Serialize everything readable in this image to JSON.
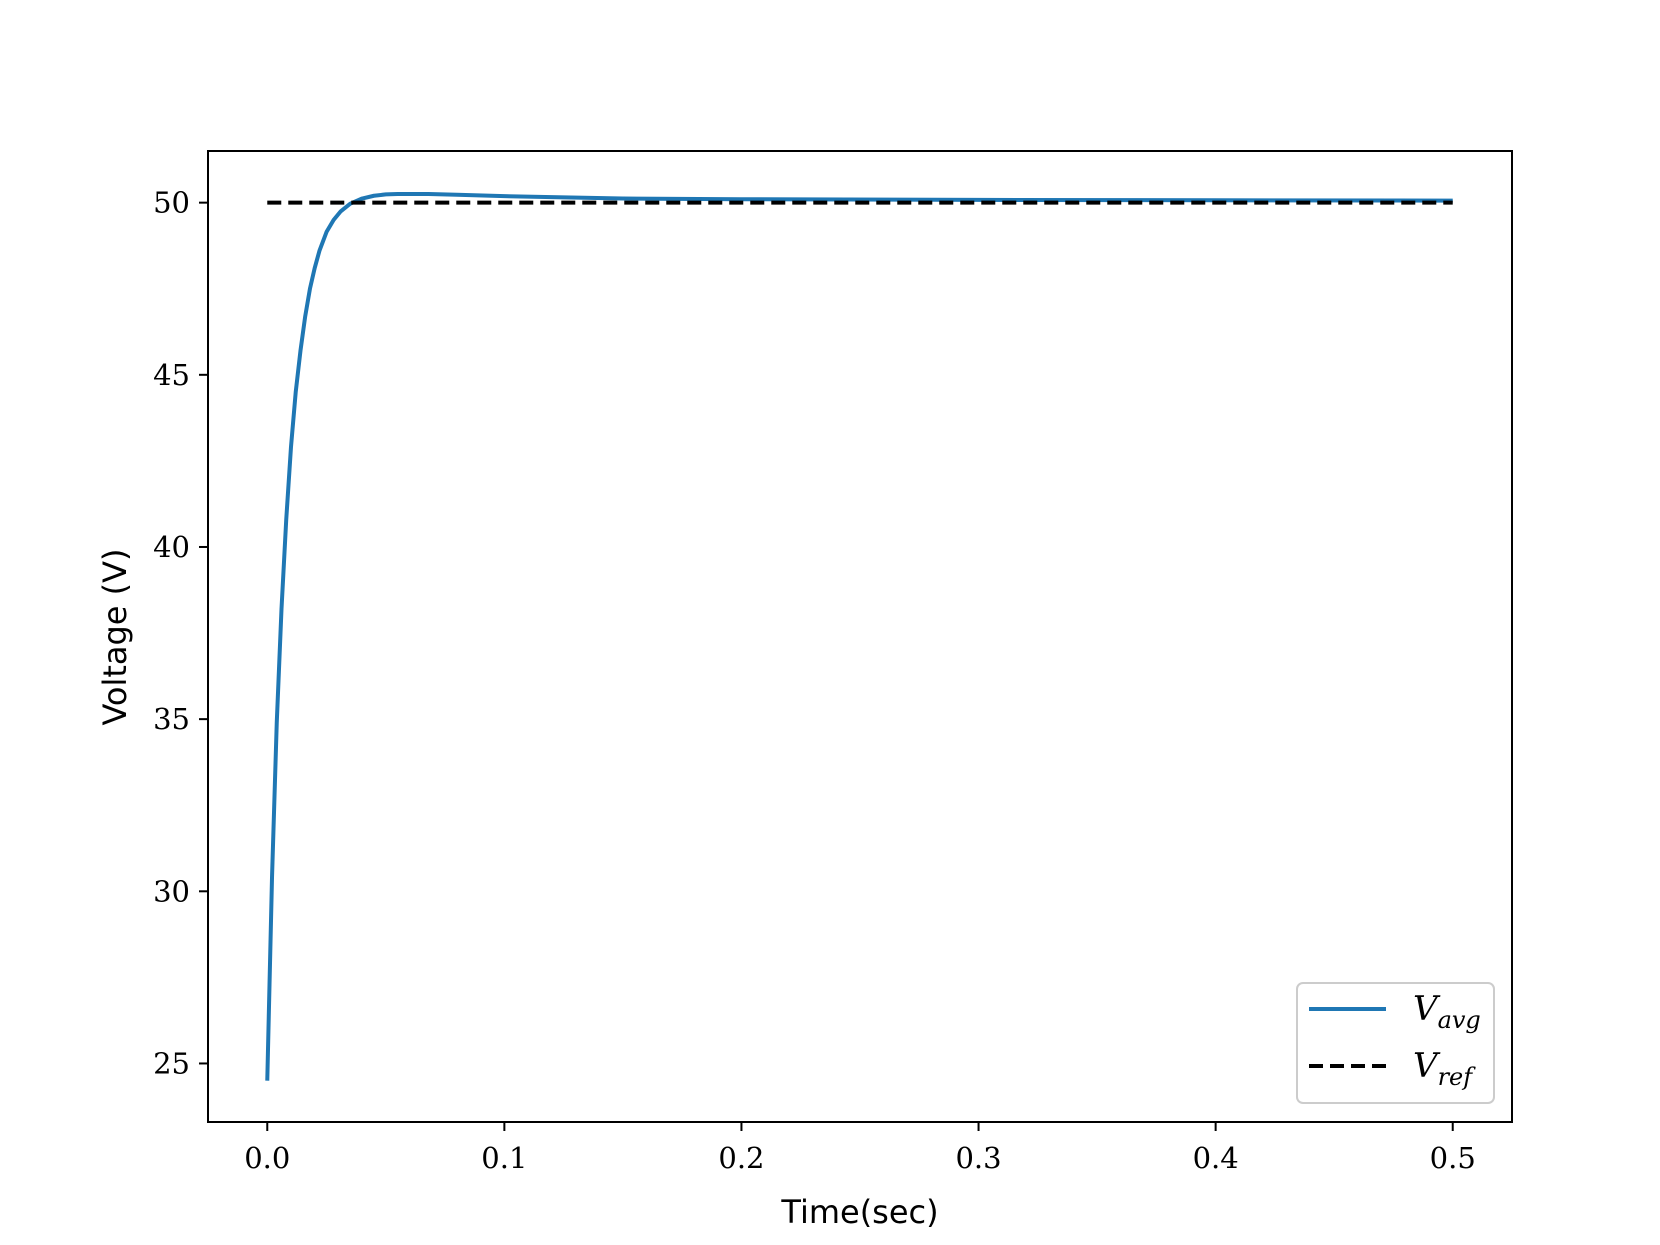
{
  "chart_data": {
    "type": "line",
    "xlabel": "Time(sec)",
    "ylabel": "Voltage (V)",
    "xlim": [
      -0.025,
      0.525
    ],
    "ylim": [
      23.3,
      51.5
    ],
    "x_ticks": [
      0.0,
      0.1,
      0.2,
      0.3,
      0.4,
      0.5
    ],
    "x_tick_labels": [
      "0.0",
      "0.1",
      "0.2",
      "0.3",
      "0.4",
      "0.5"
    ],
    "y_ticks": [
      25,
      30,
      35,
      40,
      45,
      50
    ],
    "y_tick_labels": [
      "25",
      "30",
      "35",
      "40",
      "45",
      "50"
    ],
    "grid": false,
    "legend_position": "lower-right",
    "series": [
      {
        "name_main": "V",
        "name_sub": "avg",
        "color": "#1f77b4",
        "style": "solid",
        "x": [
          0.0,
          0.002,
          0.004,
          0.006,
          0.008,
          0.01,
          0.012,
          0.014,
          0.016,
          0.018,
          0.02,
          0.022,
          0.025,
          0.028,
          0.031,
          0.035,
          0.04,
          0.045,
          0.05,
          0.055,
          0.06,
          0.068,
          0.08,
          0.1,
          0.12,
          0.15,
          0.2,
          0.3,
          0.4,
          0.5
        ],
        "y": [
          24.5,
          30.4,
          34.9,
          38.2,
          40.8,
          42.9,
          44.5,
          45.7,
          46.7,
          47.5,
          48.1,
          48.6,
          49.15,
          49.5,
          49.75,
          49.97,
          50.12,
          50.2,
          50.24,
          50.25,
          50.25,
          50.25,
          50.23,
          50.19,
          50.16,
          50.12,
          50.1,
          50.08,
          50.07,
          50.06
        ]
      },
      {
        "name_main": "V",
        "name_sub": "ref",
        "color": "#000000",
        "style": "dashed",
        "x": [
          0.0,
          0.5
        ],
        "y": [
          50.0,
          50.0
        ]
      }
    ]
  }
}
